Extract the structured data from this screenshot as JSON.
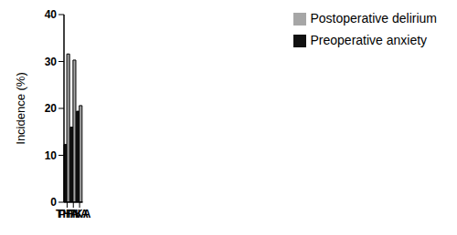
{
  "chart_data": {
    "type": "bar",
    "categories": [
      "THA",
      "PFNA",
      "TKA"
    ],
    "series": [
      {
        "name": "Preoperative anxiety",
        "color": "#111111",
        "values": [
          12.3,
          16.0,
          19.4
        ]
      },
      {
        "name": "Postoperative delirium",
        "color": "#a6a6a6",
        "values": [
          31.6,
          30.3,
          20.6
        ]
      }
    ],
    "y_label": "Incidence (%)",
    "ylim": [
      0,
      40
    ],
    "yticks": [
      0,
      10,
      20,
      30,
      40
    ],
    "grid": false,
    "legend": "upper right"
  }
}
